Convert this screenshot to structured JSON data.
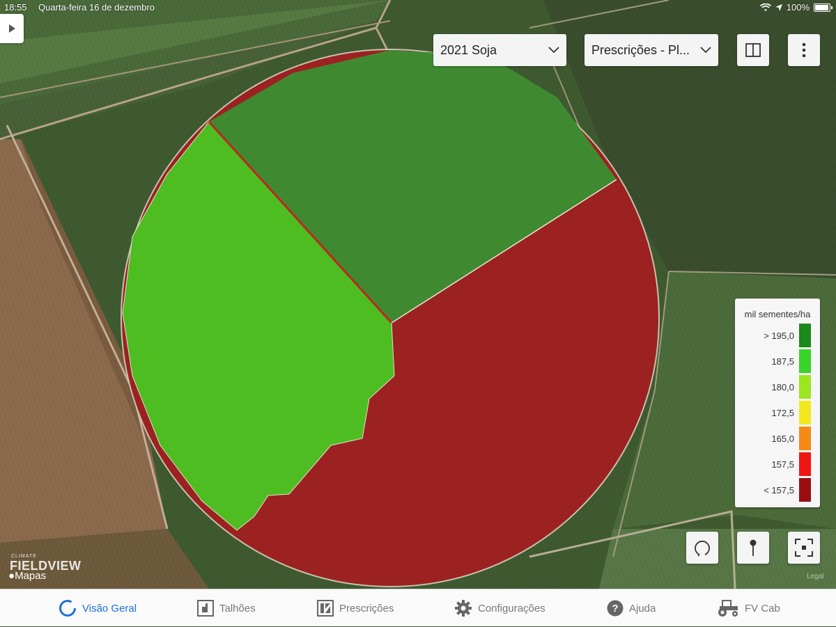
{
  "status_bar": {
    "time": "18:55",
    "date": "Quarta-feira 16 de dezembro",
    "battery": "100%",
    "icons": [
      "wifi-icon",
      "location-icon",
      "battery-icon"
    ]
  },
  "header": {
    "season_dropdown": {
      "value": "2021 Soja"
    },
    "layer_dropdown": {
      "value": "Prescrições - Pl..."
    }
  },
  "legend": {
    "title": "mil sementes/ha",
    "items": [
      {
        "label": "> 195,0",
        "color": "#1a8a1a"
      },
      {
        "label": "187,5",
        "color": "#38d42a"
      },
      {
        "label": "180,0",
        "color": "#9be61e"
      },
      {
        "label": "172,5",
        "color": "#f2e81e"
      },
      {
        "label": "165,0",
        "color": "#f58a14"
      },
      {
        "label": "157,5",
        "color": "#ef1515"
      },
      {
        "label": "< 157,5",
        "color": "#9b0d12"
      }
    ]
  },
  "map": {
    "zones": [
      {
        "name": "zone-north",
        "color": "#3f8a31"
      },
      {
        "name": "zone-west",
        "color": "#4dbd22"
      },
      {
        "name": "zone-southeast",
        "color": "#9b2220"
      }
    ]
  },
  "watermarks": {
    "brand_small": "CLIMATE",
    "brand": "FIELDVIEW",
    "maps": "Mapas",
    "legal": "Legal"
  },
  "tabbar": {
    "tabs": [
      {
        "label": "Visão Geral",
        "icon": "overview-ring-icon",
        "active": true
      },
      {
        "label": "Talhões",
        "icon": "field-icon"
      },
      {
        "label": "Prescrições",
        "icon": "prescription-icon"
      },
      {
        "label": "Configurações",
        "icon": "gear-icon"
      },
      {
        "label": "Ajuda",
        "icon": "help-icon"
      },
      {
        "label": "FV Cab",
        "icon": "tractor-icon"
      }
    ]
  },
  "colors": {
    "accent": "#1e6fd9"
  }
}
